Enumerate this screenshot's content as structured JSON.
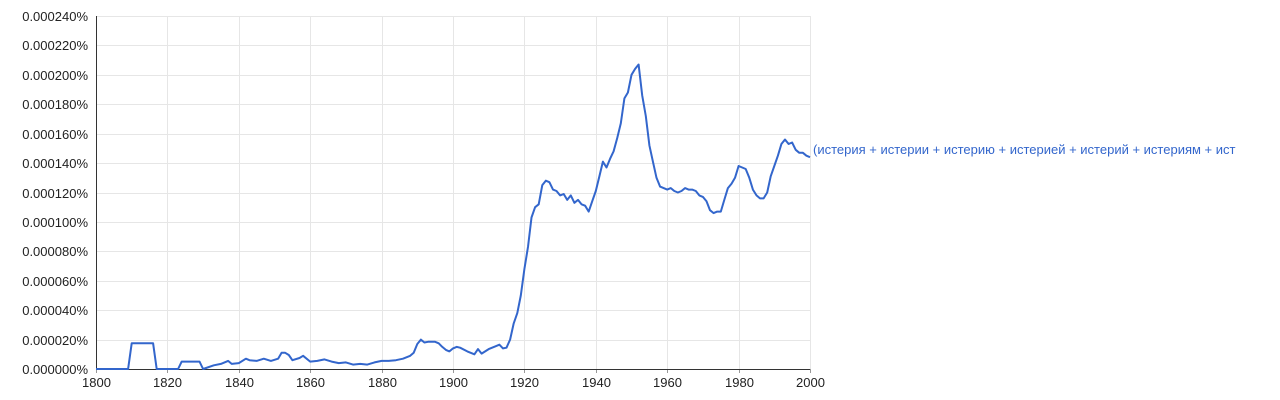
{
  "chart_data": {
    "type": "line",
    "title": "",
    "xlabel": "",
    "ylabel": "",
    "xlim": [
      1800,
      2000
    ],
    "ylim": [
      0,
      0.00024
    ],
    "grid": true,
    "x_ticks": [
      "1800",
      "1820",
      "1840",
      "1860",
      "1880",
      "1900",
      "1920",
      "1940",
      "1960",
      "1980",
      "2000"
    ],
    "x_tick_values": [
      1800,
      1820,
      1840,
      1860,
      1880,
      1900,
      1920,
      1940,
      1960,
      1980,
      2000
    ],
    "y_ticks": [
      "0.000000%",
      "0.000020%",
      "0.000040%",
      "0.000060%",
      "0.000080%",
      "0.000100%",
      "0.000120%",
      "0.000140%",
      "0.000160%",
      "0.000180%",
      "0.000200%",
      "0.000220%",
      "0.000240%"
    ],
    "y_tick_values": [
      0,
      2e-05,
      4e-05,
      6e-05,
      8e-05,
      0.0001,
      0.00012,
      0.00014,
      0.00016,
      0.00018,
      0.0002,
      0.00022,
      0.00024
    ],
    "series": [
      {
        "name": "(истерия + истерии + истерию + истерией + истерий + истериям + ист",
        "color": "#3366cc",
        "x": [
          1800,
          1809,
          1810,
          1816,
          1817,
          1822,
          1823,
          1824,
          1829,
          1830,
          1833,
          1835,
          1837,
          1838,
          1840,
          1842,
          1843,
          1845,
          1847,
          1849,
          1851,
          1852,
          1853,
          1854,
          1855,
          1857,
          1858,
          1860,
          1862,
          1864,
          1866,
          1868,
          1870,
          1872,
          1874,
          1876,
          1878,
          1880,
          1882,
          1884,
          1886,
          1888,
          1889,
          1890,
          1891,
          1892,
          1893,
          1895,
          1896,
          1897,
          1898,
          1899,
          1900,
          1901,
          1902,
          1904,
          1906,
          1907,
          1908,
          1910,
          1912,
          1913,
          1914,
          1915,
          1916,
          1917,
          1918,
          1919,
          1920,
          1921,
          1922,
          1923,
          1924,
          1925,
          1926,
          1927,
          1928,
          1929,
          1930,
          1931,
          1932,
          1933,
          1934,
          1935,
          1936,
          1937,
          1938,
          1939,
          1940,
          1941,
          1942,
          1943,
          1944,
          1945,
          1946,
          1947,
          1948,
          1949,
          1950,
          1951,
          1952,
          1953,
          1954,
          1955,
          1956,
          1957,
          1958,
          1959,
          1960,
          1961,
          1962,
          1963,
          1964,
          1965,
          1966,
          1967,
          1968,
          1969,
          1970,
          1971,
          1972,
          1973,
          1974,
          1975,
          1976,
          1977,
          1978,
          1979,
          1980,
          1981,
          1982,
          1983,
          1984,
          1985,
          1986,
          1987,
          1988,
          1989,
          1990,
          1991,
          1992,
          1993,
          1994,
          1995,
          1996,
          1997,
          1998,
          1999,
          2000
        ],
        "values": [
          0,
          0,
          1.75e-05,
          1.75e-05,
          0,
          0,
          0,
          5e-06,
          5e-06,
          0,
          2.5e-06,
          3.5e-06,
          5.5e-06,
          3.5e-06,
          4e-06,
          7e-06,
          6e-06,
          5.5e-06,
          7e-06,
          5.5e-06,
          7e-06,
          1.1e-05,
          1.1e-05,
          9.5e-06,
          6e-06,
          7.5e-06,
          9e-06,
          5e-06,
          5.5e-06,
          6.5e-06,
          5e-06,
          4e-06,
          4.5e-06,
          3e-06,
          3.5e-06,
          3e-06,
          4.5e-06,
          5.5e-06,
          5.5e-06,
          6e-06,
          7e-06,
          9e-06,
          1.1e-05,
          1.7e-05,
          2e-05,
          1.8e-05,
          1.85e-05,
          1.85e-05,
          1.75e-05,
          1.5e-05,
          1.3e-05,
          1.2e-05,
          1.4e-05,
          1.5e-05,
          1.45e-05,
          1.2e-05,
          1e-05,
          1.35e-05,
          1.05e-05,
          1.35e-05,
          1.55e-05,
          1.65e-05,
          1.4e-05,
          1.45e-05,
          2e-05,
          3.1e-05,
          3.8e-05,
          5e-05,
          6.8e-05,
          8.3e-05,
          0.000103,
          0.00011,
          0.000112,
          0.000125,
          0.000128,
          0.000127,
          0.000122,
          0.000121,
          0.000118,
          0.000119,
          0.000115,
          0.000118,
          0.000113,
          0.000115,
          0.000112,
          0.000111,
          0.000107,
          0.000114,
          0.000121,
          0.000131,
          0.000141,
          0.000137,
          0.000143,
          0.000148,
          0.000157,
          0.000167,
          0.000184,
          0.000188,
          0.0002,
          0.000204,
          0.000207,
          0.000186,
          0.000172,
          0.000152,
          0.000141,
          0.00013,
          0.000124,
          0.000123,
          0.000122,
          0.000123,
          0.000121,
          0.00012,
          0.000121,
          0.000123,
          0.000122,
          0.000122,
          0.000121,
          0.000118,
          0.000117,
          0.000114,
          0.000108,
          0.000106,
          0.000107,
          0.000107,
          0.000115,
          0.000123,
          0.000126,
          0.00013,
          0.000138,
          0.000137,
          0.000136,
          0.00013,
          0.000122,
          0.000118,
          0.000116,
          0.000116,
          0.00012,
          0.000131,
          0.000138,
          0.000145,
          0.000153,
          0.000156,
          0.000153,
          0.000154,
          0.000149,
          0.000147,
          0.000147,
          0.000145,
          0.000144
        ]
      }
    ]
  }
}
